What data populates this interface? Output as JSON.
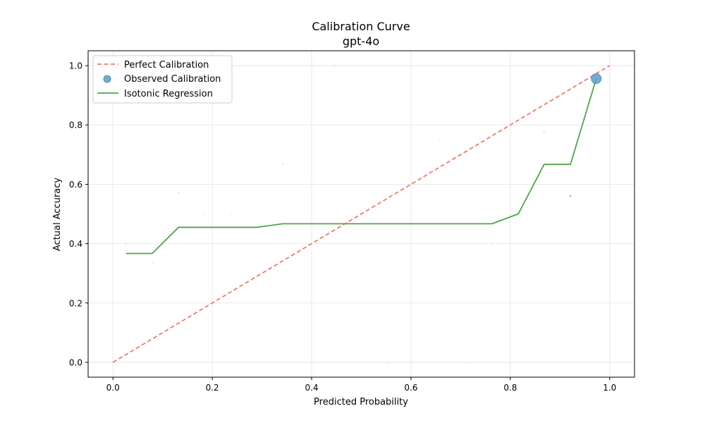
{
  "chart_data": {
    "type": "line",
    "title": "Calibration Curve",
    "subtitle": "gpt-4o",
    "xlabel": "Predicted Probability",
    "ylabel": "Actual Accuracy",
    "xlim": [
      -0.05,
      1.05
    ],
    "ylim": [
      -0.05,
      1.05
    ],
    "xticks": [
      0.0,
      0.2,
      0.4,
      0.6,
      0.8,
      1.0
    ],
    "yticks": [
      0.0,
      0.2,
      0.4,
      0.6,
      0.8,
      1.0
    ],
    "xtick_labels": [
      "0.0",
      "0.2",
      "0.4",
      "0.6",
      "0.8",
      "1.0"
    ],
    "ytick_labels": [
      "0.0",
      "0.2",
      "0.4",
      "0.6",
      "0.8",
      "1.0"
    ],
    "grid": true,
    "legend_position": "top-left",
    "series": [
      {
        "name": "Perfect Calibration",
        "kind": "line",
        "style": "dashed",
        "color": "#f07b72",
        "x": [
          0.0,
          1.0
        ],
        "y": [
          0.0,
          1.0
        ]
      },
      {
        "name": "Observed Calibration",
        "kind": "scatter",
        "color": "#5f9ec9",
        "edge_color": "#3b7cb0",
        "points": [
          {
            "x": 0.026,
            "y": 0.4,
            "size": 0.6
          },
          {
            "x": 0.079,
            "y": 0.333,
            "size": 0.6
          },
          {
            "x": 0.132,
            "y": 0.571,
            "size": 0.6
          },
          {
            "x": 0.184,
            "y": 0.5,
            "size": 0.5
          },
          {
            "x": 0.237,
            "y": 0.5,
            "size": 0.5
          },
          {
            "x": 0.289,
            "y": 0.25,
            "size": 0.5
          },
          {
            "x": 0.342,
            "y": 0.667,
            "size": 0.6
          },
          {
            "x": 0.447,
            "y": 1.0,
            "size": 0.5
          },
          {
            "x": 0.553,
            "y": 0.0,
            "size": 0.5
          },
          {
            "x": 0.605,
            "y": 0.5,
            "size": 0.5
          },
          {
            "x": 0.658,
            "y": 0.75,
            "size": 0.5
          },
          {
            "x": 0.711,
            "y": 0.0,
            "size": 0.5
          },
          {
            "x": 0.763,
            "y": 0.4,
            "size": 0.5
          },
          {
            "x": 0.868,
            "y": 0.778,
            "size": 0.7
          },
          {
            "x": 0.921,
            "y": 0.56,
            "size": 1.2
          },
          {
            "x": 0.973,
            "y": 0.956,
            "size": 7
          }
        ]
      },
      {
        "name": "Isotonic Regression",
        "kind": "line",
        "style": "solid",
        "color": "#4ea54a",
        "x": [
          0.026,
          0.079,
          0.132,
          0.184,
          0.237,
          0.289,
          0.342,
          0.447,
          0.553,
          0.605,
          0.658,
          0.711,
          0.763,
          0.816,
          0.868,
          0.921,
          0.973
        ],
        "y": [
          0.367,
          0.367,
          0.455,
          0.455,
          0.455,
          0.455,
          0.467,
          0.467,
          0.467,
          0.467,
          0.467,
          0.467,
          0.467,
          0.5,
          0.667,
          0.667,
          0.956
        ]
      }
    ]
  }
}
